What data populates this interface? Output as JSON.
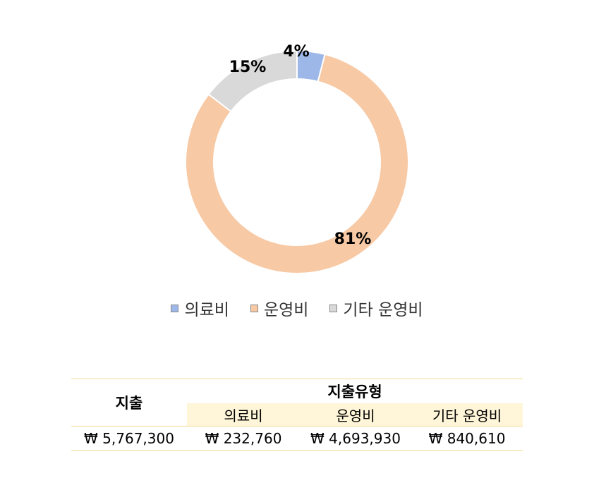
{
  "chart_data": {
    "type": "pie",
    "style": "donut",
    "categories": [
      "의료비",
      "운영비",
      "기타 운영비"
    ],
    "values": [
      232760,
      4693930,
      840610
    ],
    "data_labels": [
      "4%",
      "81%",
      "15%"
    ],
    "colors": [
      "#9db7e8",
      "#f7c9a5",
      "#d9d9d9"
    ],
    "border_colors": [
      "#7090c8",
      "#e0a880",
      "#b8b8b8"
    ],
    "legend_position": "bottom"
  },
  "legend": {
    "items": [
      {
        "label": "의료비",
        "color": "#9db7e8"
      },
      {
        "label": "운영비",
        "color": "#f7c9a5"
      },
      {
        "label": "기타 운영비",
        "color": "#d9d9d9"
      }
    ]
  },
  "table": {
    "spend_header": "지출",
    "type_header": "지출유형",
    "sub_headers": [
      "의료비",
      "운영비",
      "기타 운영비"
    ],
    "total_value": "₩ 5,767,300",
    "type_values": [
      "₩ 232,760",
      "₩ 4,693,930",
      "₩ 840,610"
    ]
  }
}
